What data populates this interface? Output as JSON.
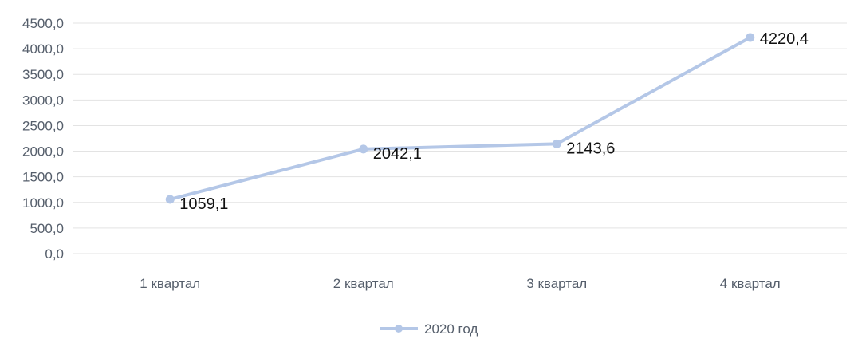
{
  "chart_data": {
    "type": "line",
    "categories": [
      "1 квартал",
      "2 квартал",
      "3 квартал",
      "4 квартал"
    ],
    "series": [
      {
        "name": "2020 год",
        "values": [
          1059.1,
          2042.1,
          2143.6,
          4220.4
        ],
        "data_labels": [
          "1059,1",
          "2042,1",
          "2143,6",
          "4220,4"
        ]
      }
    ],
    "y_ticks": [
      "0,0",
      "500,0",
      "1000,0",
      "1500,0",
      "2000,0",
      "2500,0",
      "3000,0",
      "3500,0",
      "4000,0",
      "4500,0"
    ],
    "ylim": [
      0,
      4500
    ],
    "grid": true,
    "legend_position": "bottom",
    "colors": {
      "series": "#b4c7e7",
      "grid": "#e3e3e3",
      "text": "#555e6b"
    }
  }
}
